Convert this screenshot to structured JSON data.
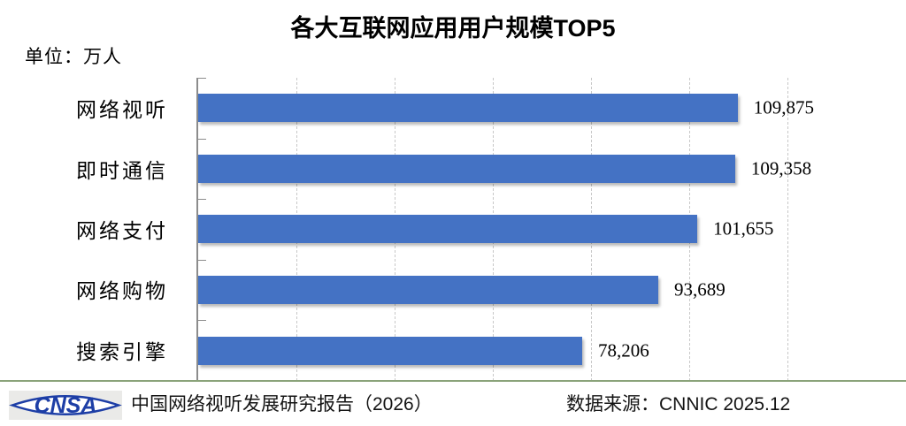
{
  "title": "各大互联网应用用户规模TOP5",
  "unit_label": "单位：万人",
  "chart_data": {
    "type": "bar",
    "orientation": "horizontal",
    "title": "各大互联网应用用户规模TOP5",
    "unit": "万人",
    "categories": [
      "网络视听",
      "即时通信",
      "网络支付",
      "网络购物",
      "搜索引擎"
    ],
    "values": [
      109875,
      109358,
      101655,
      93689,
      78206
    ],
    "value_labels": [
      "109,875",
      "109,358",
      "101,655",
      "93,689",
      "78,206"
    ],
    "xlabel": "",
    "ylabel": "",
    "xlim": [
      0,
      120000
    ],
    "gridline_interval": 20000,
    "grid": "vertical-dashed",
    "legend": "none",
    "bar_color": "#4472C4"
  },
  "footer": {
    "logo_text": "CNSA",
    "source_left": "中国网络视听发展研究报告（2026）",
    "source_right": "数据来源：CNNIC 2025.12"
  },
  "colors": {
    "bar": "#4472C4",
    "axis": "#8C8C8C",
    "gridline": "#C8C8C8",
    "divider": "#8AA37A",
    "logo_blue": "#1D3EA6",
    "logo_bg": "#EAEAE8"
  }
}
